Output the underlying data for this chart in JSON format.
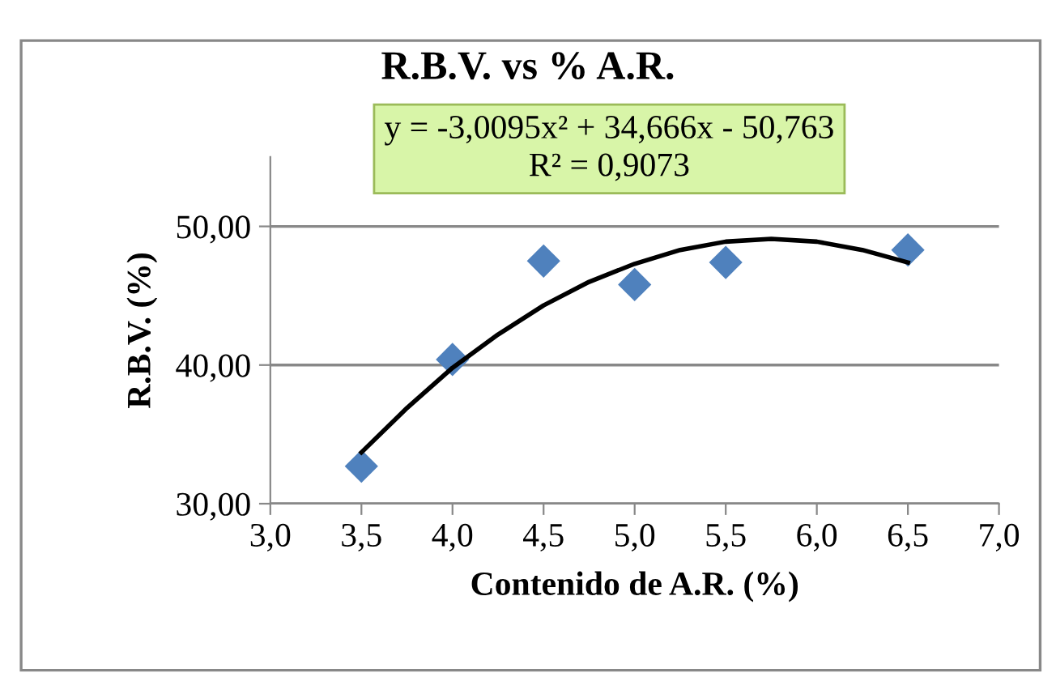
{
  "chart_data": {
    "type": "scatter",
    "title": "R.B.V. vs % A.R.",
    "xlabel": "Contenido de A.R. (%)",
    "ylabel": "R.B.V. (%)",
    "annotations": [
      "y = -3,0095x² + 34,666x - 50,763\nR² = 0,9073"
    ],
    "series": [
      {
        "color": "#4f81bd",
        "marker": "diamond",
        "x": [
          3.5,
          4.0,
          4.5,
          5.0,
          5.5,
          6.5
        ],
        "values": [
          32.7,
          40.4,
          47.5,
          45.8,
          47.4,
          48.3
        ]
      },
      {
        "type": "line",
        "color": "#000000",
        "marker": "none",
        "line_style": "solid",
        "x": [
          3.5,
          3.75,
          4.0,
          4.25,
          4.5,
          4.75,
          5.0,
          5.25,
          5.5,
          5.75,
          6.0,
          6.25,
          6.5
        ],
        "values": [
          33.7,
          36.9,
          39.8,
          42.2,
          44.3,
          46.0,
          47.3,
          48.3,
          48.9,
          49.1,
          48.9,
          48.3,
          47.4
        ]
      }
    ],
    "xlim": [
      3.0,
      7.0
    ],
    "xticks": [
      {
        "value": 3.0,
        "label": "3,0"
      },
      {
        "value": 3.5,
        "label": "3,5"
      },
      {
        "value": 4.0,
        "label": "4,0"
      },
      {
        "value": 4.5,
        "label": "4,5"
      },
      {
        "value": 5.0,
        "label": "5,0"
      },
      {
        "value": 5.5,
        "label": "5,5"
      },
      {
        "value": 6.0,
        "label": "6,0"
      },
      {
        "value": 6.5,
        "label": "6,5"
      },
      {
        "value": 7.0,
        "label": "7,0"
      }
    ],
    "ylim": [
      30,
      55
    ],
    "yticks": [
      {
        "value": 30,
        "label": "30,00"
      },
      {
        "value": 40,
        "label": "40,00"
      },
      {
        "value": 50,
        "label": "50,00"
      }
    ],
    "grid": "y",
    "legend": false
  }
}
